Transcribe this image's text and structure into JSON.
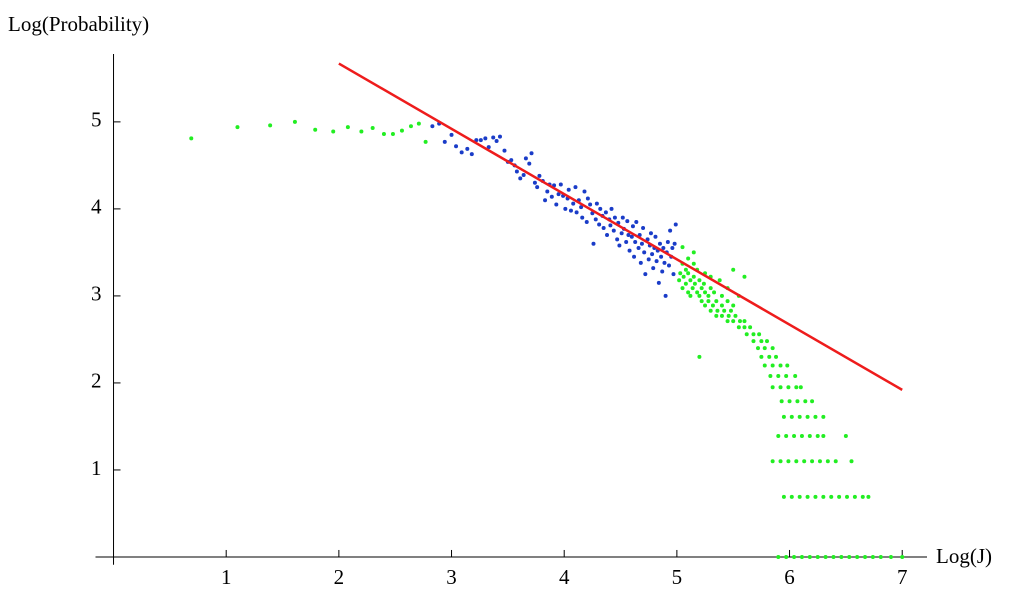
{
  "chart_data": {
    "type": "scatter",
    "y_label": "Log(Probability)",
    "x_label": "Log(J)",
    "xlim": [
      -0.16,
      7.22
    ],
    "ylim": [
      -0.09,
      5.78
    ],
    "xticks": [
      1,
      2,
      3,
      4,
      5,
      6,
      7
    ],
    "yticks": [
      1,
      2,
      3,
      4,
      5
    ],
    "series": [
      {
        "mode": "markers",
        "color": "#22ee22",
        "x": [
          0.69,
          1.1,
          1.39,
          1.61,
          1.79,
          1.95,
          2.08,
          2.2,
          2.3,
          2.4,
          2.48,
          2.56,
          2.64,
          2.71,
          2.77,
          5.9,
          5.97,
          6.04,
          6.11,
          6.18,
          6.25,
          6.32,
          6.39,
          6.46,
          6.53,
          6.6,
          6.67,
          6.74,
          6.81,
          6.9,
          7.0,
          5.95,
          6.02,
          6.09,
          6.16,
          6.23,
          6.3,
          6.37,
          6.44,
          6.51,
          6.58,
          6.65,
          6.7,
          5.85,
          5.92,
          5.99,
          6.06,
          6.13,
          6.2,
          6.27,
          6.34,
          6.41,
          6.55,
          5.9,
          5.97,
          6.04,
          6.11,
          6.18,
          6.25,
          6.3,
          6.5,
          5.95,
          6.02,
          6.09,
          6.16,
          6.23,
          6.3,
          5.93,
          6.0,
          6.07,
          6.14,
          6.2,
          5.85,
          5.92,
          5.99,
          6.06,
          6.1,
          5.83,
          5.9,
          5.97,
          6.05,
          5.78,
          5.85,
          5.92,
          5.98,
          5.75,
          5.82,
          5.88,
          5.2,
          5.72,
          5.78,
          5.85,
          5.68,
          5.75,
          5.8,
          5.62,
          5.68,
          5.73,
          5.55,
          5.6,
          5.65,
          5.45,
          5.5,
          5.56,
          5.6,
          5.35,
          5.4,
          5.46,
          5.52,
          5.3,
          5.36,
          5.42,
          5.48,
          5.25,
          5.32,
          5.4,
          5.5,
          5.22,
          5.28,
          5.35,
          5.45,
          5.12,
          5.2,
          5.28,
          5.4,
          5.55,
          5.1,
          5.18,
          5.25,
          5.33,
          5.05,
          5.14,
          5.22,
          5.3,
          5.45,
          5.08,
          5.16,
          5.24,
          5.02,
          5.12,
          5.2,
          5.38,
          5.06,
          5.15,
          5.3,
          5.6,
          5.03,
          5.1,
          5.25,
          5.08,
          5.18,
          5.5,
          5.05,
          5.15,
          5.1,
          5.15,
          5.05
        ],
        "values": [
          4.81,
          4.94,
          4.96,
          5.0,
          4.91,
          4.89,
          4.94,
          4.89,
          4.93,
          4.86,
          4.86,
          4.9,
          4.95,
          4.98,
          4.77,
          0,
          0,
          0,
          0,
          0,
          0,
          0,
          0,
          0,
          0,
          0,
          0,
          0,
          0,
          0,
          0,
          0.69,
          0.69,
          0.69,
          0.69,
          0.69,
          0.69,
          0.69,
          0.69,
          0.69,
          0.69,
          0.69,
          0.69,
          1.1,
          1.1,
          1.1,
          1.1,
          1.1,
          1.1,
          1.1,
          1.1,
          1.1,
          1.1,
          1.39,
          1.39,
          1.39,
          1.39,
          1.39,
          1.39,
          1.39,
          1.39,
          1.61,
          1.61,
          1.61,
          1.61,
          1.61,
          1.61,
          1.79,
          1.79,
          1.79,
          1.79,
          1.79,
          1.95,
          1.95,
          1.95,
          1.95,
          1.95,
          2.08,
          2.08,
          2.08,
          2.08,
          2.2,
          2.2,
          2.2,
          2.2,
          2.3,
          2.3,
          2.3,
          2.3,
          2.4,
          2.4,
          2.4,
          2.48,
          2.48,
          2.48,
          2.56,
          2.56,
          2.56,
          2.64,
          2.64,
          2.64,
          2.71,
          2.71,
          2.71,
          2.71,
          2.77,
          2.77,
          2.77,
          2.77,
          2.83,
          2.83,
          2.83,
          2.83,
          2.89,
          2.89,
          2.89,
          2.89,
          2.94,
          2.94,
          2.94,
          2.94,
          3.0,
          3.0,
          3.0,
          3.0,
          3.0,
          3.04,
          3.04,
          3.04,
          3.04,
          3.09,
          3.09,
          3.09,
          3.09,
          3.09,
          3.14,
          3.14,
          3.14,
          3.18,
          3.18,
          3.18,
          3.18,
          3.22,
          3.22,
          3.22,
          3.22,
          3.26,
          3.26,
          3.26,
          3.3,
          3.3,
          3.3,
          3.37,
          3.37,
          3.43,
          3.5,
          3.56
        ]
      },
      {
        "mode": "markers",
        "color": "#1a3cc8",
        "x": [
          2.83,
          2.89,
          2.94,
          3.0,
          3.04,
          3.09,
          3.14,
          3.18,
          3.22,
          3.26,
          3.3,
          3.33,
          3.37,
          3.4,
          3.43,
          3.47,
          3.5,
          3.53,
          3.56,
          3.58,
          3.61,
          3.64,
          3.66,
          3.69,
          3.71,
          3.74,
          3.76,
          3.78,
          3.81,
          3.83,
          3.85,
          3.87,
          3.89,
          3.91,
          3.93,
          3.95,
          3.97,
          3.99,
          4.01,
          4.03,
          4.04,
          4.06,
          4.08,
          4.1,
          4.11,
          4.13,
          4.15,
          4.16,
          4.18,
          4.2,
          4.21,
          4.23,
          4.25,
          4.26,
          4.28,
          4.29,
          4.31,
          4.32,
          4.34,
          4.35,
          4.37,
          4.38,
          4.4,
          4.41,
          4.42,
          4.44,
          4.45,
          4.47,
          4.48,
          4.49,
          4.51,
          4.52,
          4.53,
          4.55,
          4.56,
          4.57,
          4.58,
          4.6,
          4.61,
          4.62,
          4.63,
          4.64,
          4.66,
          4.67,
          4.68,
          4.69,
          4.7,
          4.71,
          4.72,
          4.74,
          4.75,
          4.76,
          4.77,
          4.78,
          4.79,
          4.8,
          4.81,
          4.82,
          4.83,
          4.84,
          4.85,
          4.86,
          4.87,
          4.88,
          4.89,
          4.9,
          4.91,
          4.92,
          4.93,
          4.94,
          4.95,
          4.96,
          4.97,
          4.98,
          4.99
        ],
        "values": [
          4.95,
          4.98,
          4.77,
          4.85,
          4.72,
          4.65,
          4.69,
          4.63,
          4.79,
          4.79,
          4.81,
          4.71,
          4.82,
          4.78,
          4.83,
          4.67,
          4.54,
          4.56,
          4.5,
          4.43,
          4.35,
          4.39,
          4.58,
          4.52,
          4.64,
          4.3,
          4.25,
          4.38,
          4.32,
          4.1,
          4.2,
          4.28,
          4.14,
          4.27,
          4.05,
          4.17,
          4.28,
          4.15,
          4.0,
          4.12,
          4.22,
          3.98,
          4.06,
          4.25,
          3.96,
          4.1,
          4.02,
          3.9,
          4.2,
          3.85,
          4.12,
          4.05,
          3.95,
          3.6,
          3.88,
          4.06,
          3.82,
          4.0,
          3.92,
          3.78,
          3.96,
          3.7,
          3.88,
          3.81,
          4.0,
          3.75,
          3.9,
          3.65,
          3.84,
          3.58,
          3.72,
          3.9,
          3.77,
          3.62,
          3.86,
          3.7,
          3.52,
          3.68,
          3.8,
          3.45,
          3.62,
          3.85,
          3.55,
          3.7,
          3.38,
          3.6,
          3.78,
          3.5,
          3.25,
          3.65,
          3.42,
          3.58,
          3.72,
          3.48,
          3.32,
          3.55,
          3.68,
          3.4,
          3.52,
          3.15,
          3.6,
          3.45,
          3.28,
          3.55,
          3.38,
          3.0,
          3.5,
          3.62,
          3.35,
          3.75,
          3.45,
          3.55,
          3.25,
          3.6,
          3.82
        ]
      },
      {
        "mode": "line",
        "color": "#ee1c1c",
        "x": [
          2,
          7
        ],
        "values": [
          5.67,
          1.92
        ]
      }
    ]
  }
}
